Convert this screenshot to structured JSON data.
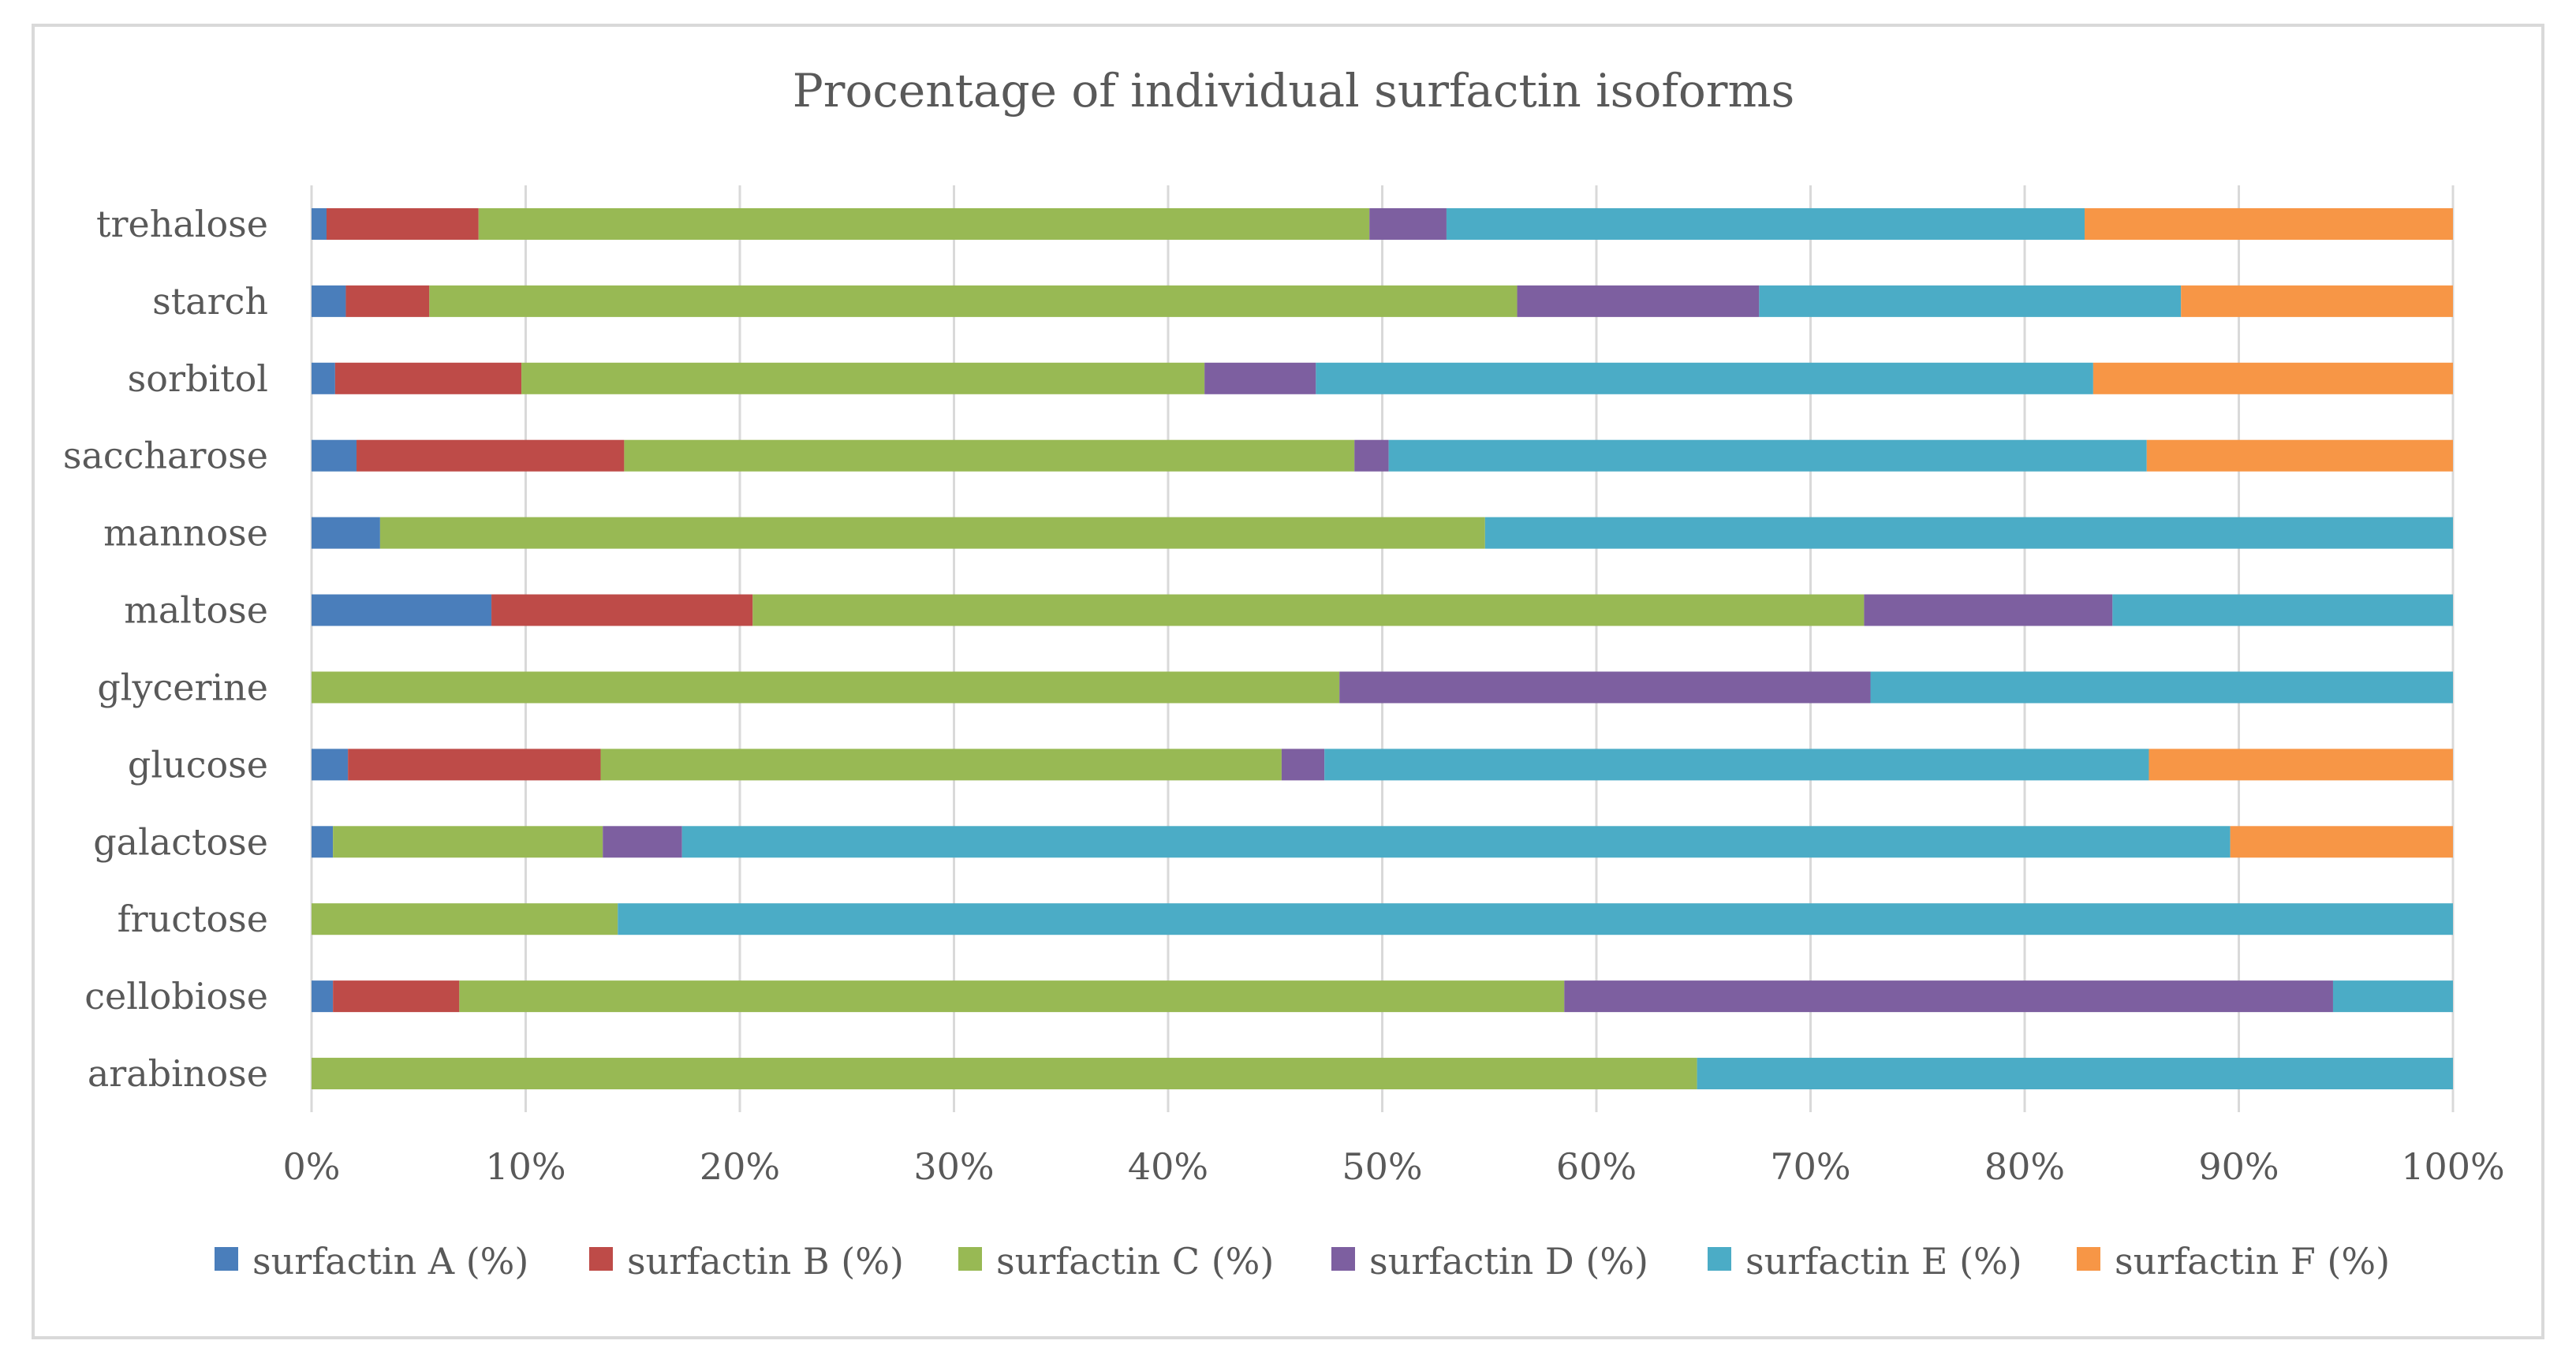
{
  "chart_data": {
    "type": "bar",
    "orientation": "horizontal",
    "stacked": "percent",
    "title": "Procentage of individual surfactin isoforms",
    "xlabel": "",
    "ylabel": "",
    "xlim": [
      0,
      100
    ],
    "x_ticks": [
      "0%",
      "10%",
      "20%",
      "30%",
      "40%",
      "50%",
      "60%",
      "70%",
      "80%",
      "90%",
      "100%"
    ],
    "grid": true,
    "legend_position": "bottom",
    "categories": [
      "trehalose",
      "starch",
      "sorbitol",
      "saccharose",
      "mannose",
      "maltose",
      "glycerine",
      "glucose",
      "galactose",
      "fructose",
      "cellobiose",
      "arabinose"
    ],
    "series": [
      {
        "name": "surfactin A (%)",
        "color": "#4a7ebb",
        "values": [
          0.7,
          1.6,
          1.1,
          2.1,
          3.2,
          8.4,
          0,
          1.7,
          1.0,
          0,
          1.0,
          0
        ]
      },
      {
        "name": "surfactin B (%)",
        "color": "#be4b48",
        "values": [
          7.1,
          3.9,
          8.7,
          12.5,
          0,
          12.2,
          0,
          11.8,
          0,
          0,
          5.9,
          0
        ]
      },
      {
        "name": "surfactin C (%)",
        "color": "#98b954",
        "values": [
          41.6,
          50.8,
          31.9,
          34.1,
          51.6,
          51.9,
          48.0,
          31.8,
          12.6,
          14.3,
          51.6,
          64.7
        ]
      },
      {
        "name": "surfactin D (%)",
        "color": "#7d5fa0",
        "values": [
          3.6,
          11.3,
          5.2,
          1.6,
          0,
          11.6,
          24.8,
          2.0,
          3.7,
          0,
          35.9,
          0
        ]
      },
      {
        "name": "surfactin E (%)",
        "color": "#4bacc6",
        "values": [
          29.8,
          19.7,
          36.3,
          35.4,
          45.2,
          15.9,
          27.2,
          38.5,
          72.3,
          85.7,
          5.6,
          35.3
        ]
      },
      {
        "name": "surfactin F (%)",
        "color": "#f79646",
        "values": [
          17.2,
          12.7,
          16.8,
          14.3,
          0,
          0,
          0,
          14.2,
          10.4,
          0,
          0,
          0
        ]
      }
    ]
  }
}
